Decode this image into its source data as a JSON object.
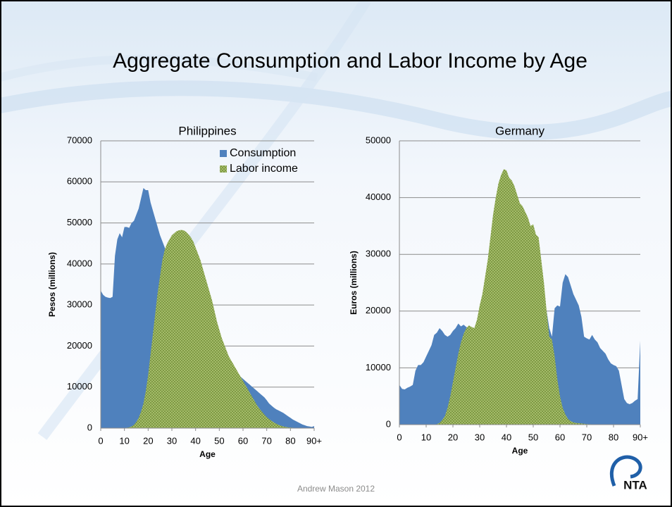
{
  "title": "Aggregate Consumption and Labor Income by Age",
  "footer": "Andrew Mason 2012",
  "logo": "NTA",
  "chart_data": [
    {
      "type": "area",
      "title": "Philippines",
      "x_label": "Age",
      "y_label": "Pesos (millions)",
      "x": [
        0,
        1,
        2,
        3,
        4,
        5,
        6,
        7,
        8,
        9,
        10,
        11,
        12,
        13,
        14,
        15,
        16,
        17,
        18,
        19,
        20,
        21,
        22,
        23,
        24,
        25,
        26,
        27,
        28,
        29,
        30,
        31,
        32,
        33,
        34,
        35,
        36,
        37,
        38,
        39,
        40,
        41,
        42,
        43,
        44,
        45,
        46,
        47,
        48,
        49,
        50,
        51,
        52,
        53,
        54,
        55,
        56,
        57,
        58,
        59,
        60,
        61,
        62,
        63,
        64,
        65,
        66,
        67,
        68,
        69,
        70,
        71,
        72,
        73,
        74,
        75,
        76,
        77,
        78,
        79,
        80,
        81,
        82,
        83,
        84,
        85,
        86,
        87,
        88,
        89,
        90
      ],
      "xlim": [
        0,
        90
      ],
      "xticks": [
        0,
        10,
        20,
        30,
        40,
        50,
        60,
        70,
        80,
        {
          "value": 90,
          "label": "90+"
        }
      ],
      "ylim": [
        0,
        70000
      ],
      "yticks": [
        0,
        10000,
        20000,
        30000,
        40000,
        50000,
        60000,
        70000
      ],
      "grid": true,
      "legend": "upper right",
      "series": [
        {
          "name": "Consumption",
          "color": "#4f81bd",
          "values": [
            33500,
            32500,
            32000,
            31800,
            31700,
            32000,
            42000,
            46000,
            47500,
            46500,
            49000,
            49000,
            48800,
            50000,
            50500,
            52000,
            53500,
            56000,
            58500,
            58000,
            58000,
            55000,
            53000,
            51000,
            49000,
            47000,
            45500,
            44000,
            42500,
            41000,
            40000,
            38500,
            37000,
            36000,
            34500,
            33500,
            32500,
            31000,
            30000,
            29000,
            28000,
            27000,
            26000,
            25000,
            24000,
            23000,
            22000,
            21000,
            20000,
            19000,
            18000,
            17000,
            16000,
            15500,
            15000,
            14500,
            14000,
            13500,
            13000,
            12500,
            12000,
            11500,
            11000,
            10500,
            10000,
            9500,
            9000,
            8500,
            8000,
            7500,
            6800,
            6000,
            5500,
            5000,
            4600,
            4300,
            4000,
            3700,
            3300,
            2900,
            2500,
            2100,
            1800,
            1500,
            1200,
            900,
            700,
            500,
            400,
            300,
            500
          ]
        },
        {
          "name": "Labor income",
          "color": "#77933c",
          "pattern": "crosshatch",
          "values": [
            0,
            0,
            0,
            0,
            0,
            0,
            0,
            0,
            0,
            0,
            50,
            100,
            200,
            400,
            800,
            1500,
            2500,
            4000,
            6000,
            9000,
            13000,
            18000,
            23000,
            28000,
            33000,
            37000,
            41000,
            43500,
            45000,
            46000,
            47000,
            47500,
            48000,
            48200,
            48300,
            48200,
            47800,
            47200,
            46500,
            45500,
            44000,
            42500,
            41000,
            39000,
            37000,
            35000,
            33000,
            31000,
            28500,
            26000,
            24000,
            22000,
            20500,
            19000,
            17500,
            16500,
            15500,
            14500,
            13500,
            12500,
            11500,
            10500,
            9500,
            8500,
            7500,
            6500,
            5500,
            4700,
            4000,
            3300,
            2700,
            2200,
            1800,
            1400,
            1100,
            800,
            600,
            400,
            300,
            200,
            150,
            100,
            70,
            50,
            30,
            20,
            10,
            5,
            0,
            0,
            0
          ]
        }
      ]
    },
    {
      "type": "area",
      "title": "Germany",
      "x_label": "Age",
      "y_label": "Euros (millions)",
      "x": [
        0,
        1,
        2,
        3,
        4,
        5,
        6,
        7,
        8,
        9,
        10,
        11,
        12,
        13,
        14,
        15,
        16,
        17,
        18,
        19,
        20,
        21,
        22,
        23,
        24,
        25,
        26,
        27,
        28,
        29,
        30,
        31,
        32,
        33,
        34,
        35,
        36,
        37,
        38,
        39,
        40,
        41,
        42,
        43,
        44,
        45,
        46,
        47,
        48,
        49,
        50,
        51,
        52,
        53,
        54,
        55,
        56,
        57,
        58,
        59,
        60,
        61,
        62,
        63,
        64,
        65,
        66,
        67,
        68,
        69,
        70,
        71,
        72,
        73,
        74,
        75,
        76,
        77,
        78,
        79,
        80,
        81,
        82,
        83,
        84,
        85,
        86,
        87,
        88,
        89,
        90
      ],
      "xlim": [
        0,
        90
      ],
      "xticks": [
        0,
        10,
        20,
        30,
        40,
        50,
        60,
        70,
        80,
        {
          "value": 90,
          "label": "90+"
        }
      ],
      "ylim": [
        0,
        50000
      ],
      "yticks": [
        0,
        10000,
        20000,
        30000,
        40000,
        50000
      ],
      "grid": true,
      "series": [
        {
          "name": "Consumption",
          "color": "#4f81bd",
          "values": [
            7000,
            6300,
            6200,
            6500,
            6700,
            7000,
            9500,
            10500,
            10500,
            11000,
            12000,
            13000,
            14000,
            15800,
            16200,
            17000,
            16500,
            15800,
            15500,
            15800,
            16500,
            17000,
            17800,
            17300,
            17600,
            17200,
            17000,
            16900,
            17000,
            18000,
            19500,
            21000,
            22000,
            23000,
            24000,
            24500,
            25000,
            24500,
            25500,
            25500,
            25800,
            25000,
            24500,
            24000,
            23500,
            22500,
            22000,
            22000,
            21800,
            21500,
            21500,
            21800,
            21500,
            22000,
            21500,
            20000,
            17000,
            15500,
            20500,
            21000,
            20800,
            25000,
            26500,
            26000,
            24500,
            23000,
            22000,
            21000,
            19000,
            15500,
            15200,
            15000,
            15800,
            15000,
            14500,
            13500,
            13000,
            12500,
            11500,
            10800,
            10500,
            10300,
            9500,
            7000,
            4500,
            3800,
            3600,
            3800,
            4200,
            4500,
            14800
          ]
        },
        {
          "name": "Labor income",
          "color": "#77933c",
          "pattern": "crosshatch",
          "values": [
            0,
            0,
            0,
            0,
            0,
            0,
            0,
            0,
            0,
            0,
            0,
            0,
            0,
            0,
            100,
            300,
            800,
            1500,
            3000,
            5000,
            7500,
            10000,
            12500,
            14500,
            16000,
            17000,
            17500,
            17200,
            17000,
            18500,
            21000,
            23000,
            26000,
            29000,
            33000,
            37000,
            40000,
            42500,
            44000,
            45000,
            44800,
            43500,
            43000,
            42000,
            40500,
            39000,
            38500,
            37500,
            36500,
            35000,
            35300,
            33500,
            33000,
            29000,
            25000,
            20000,
            15500,
            15000,
            12000,
            8000,
            5000,
            3000,
            1800,
            1000,
            600,
            400,
            300,
            250,
            200,
            150,
            100,
            80,
            60,
            50,
            40,
            30,
            20,
            15,
            10,
            5,
            0,
            0,
            0,
            0,
            0,
            0,
            0,
            0,
            0,
            0,
            0
          ]
        }
      ]
    }
  ]
}
